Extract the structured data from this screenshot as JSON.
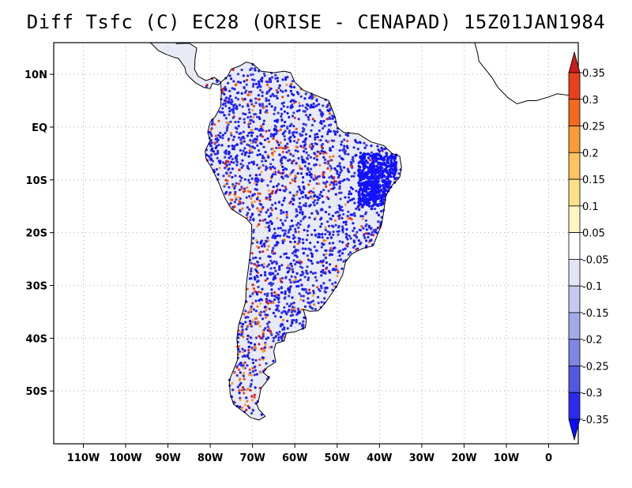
{
  "title": "Diff Tsfc (C) EC28 (ORISE - CENAPAD) 15Z01JAN1984",
  "map": {
    "lon_range": [
      -117,
      7
    ],
    "lat_range": [
      -60,
      16
    ],
    "x_ticks": [
      "110W",
      "100W",
      "90W",
      "80W",
      "70W",
      "60W",
      "50W",
      "40W",
      "30W",
      "20W",
      "10W",
      "0"
    ],
    "x_tick_values": [
      -110,
      -100,
      -90,
      -80,
      -70,
      -60,
      -50,
      -40,
      -30,
      -20,
      -10,
      0
    ],
    "y_ticks": [
      "10N",
      "EQ",
      "10S",
      "20S",
      "30S",
      "40S",
      "50S"
    ],
    "y_tick_values": [
      10,
      0,
      -10,
      -20,
      -30,
      -40,
      -50
    ],
    "grid": "dotted",
    "land_fill": "#e8ebf6",
    "coast_color": "#000000"
  },
  "colorbar": {
    "labels": [
      "0.35",
      "0.3",
      "0.25",
      "0.2",
      "0.15",
      "0.1",
      "0.05",
      "-0.05",
      "-0.1",
      "-0.15",
      "-0.2",
      "-0.25",
      "-0.3",
      "-0.35"
    ],
    "colors": [
      "#c81e1e",
      "#e8401c",
      "#f36a1f",
      "#f99b3a",
      "#fcc35e",
      "#fde189",
      "#fff4c4",
      "#ffffff",
      "#e2e5f6",
      "#c4c9ef",
      "#a3aae8",
      "#7e85e2",
      "#5257e4",
      "#2b2bf0",
      "#0c0cff"
    ],
    "orientation": "vertical",
    "placement": "right"
  }
}
